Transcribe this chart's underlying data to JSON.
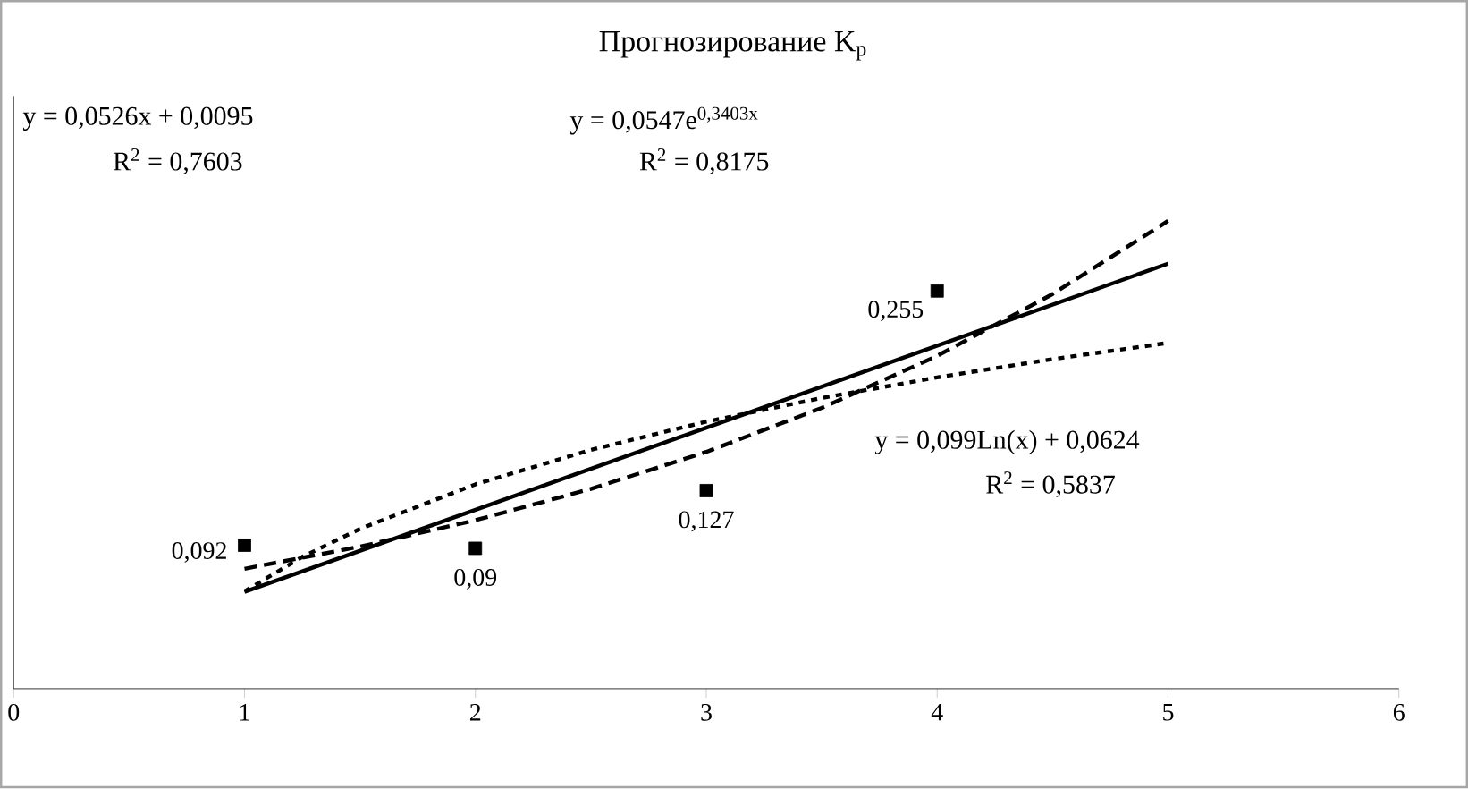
{
  "chart_data": {
    "type": "scatter",
    "title": "Прогнозирование K$_{p}$",
    "xlim": [
      0,
      6
    ],
    "xticks": [
      0,
      1,
      2,
      3,
      4,
      5,
      6
    ],
    "ylim": [
      0,
      0.38
    ],
    "tick_labels": "x",
    "grid": false,
    "series": [
      {
        "color": "#000000",
        "marker": "square",
        "x": [
          1,
          2,
          3,
          4
        ],
        "values": [
          0.092,
          0.09,
          0.127,
          0.255
        ],
        "value_labels": [
          "0,092",
          "0,09",
          "0,127",
          "0,255"
        ]
      },
      {
        "type": "line",
        "color": "#000000",
        "marker": "none",
        "line_style": "solid",
        "x": [
          1,
          5
        ],
        "values": [
          0.0621,
          0.2725
        ]
      },
      {
        "type": "line",
        "color": "#000000",
        "marker": "none",
        "line_style": "dashed",
        "x": [
          1,
          1.5,
          2,
          2.5,
          3,
          3.5,
          4,
          4.5,
          5
        ],
        "values": [
          0.0769,
          0.0911,
          0.108,
          0.1281,
          0.1518,
          0.18,
          0.2134,
          0.253,
          0.2999
        ]
      },
      {
        "type": "line",
        "color": "#000000",
        "marker": "none",
        "line_style": "dotted",
        "x": [
          1,
          1.25,
          1.5,
          2,
          2.5,
          3,
          3.5,
          4,
          4.5,
          5
        ],
        "values": [
          0.0624,
          0.0845,
          0.1025,
          0.131,
          0.1531,
          0.1712,
          0.1864,
          0.1996,
          0.2113,
          0.2217
        ]
      }
    ],
    "annotations": [
      "y = 0,0526x + 0,0095",
      "R$^{2}$ = 0,7603",
      "y = 0,0547e$^{0,3403x}$",
      "R$^{2}$ = 0,8175",
      "y = 0,099Ln(x) + 0,0624",
      "R$^{2}$ = 0,5837"
    ]
  }
}
